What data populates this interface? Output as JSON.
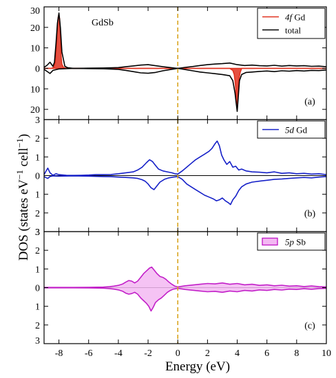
{
  "chart_data": {
    "type": "line",
    "xlabel": "Energy (eV)",
    "ylabel": "DOS (states eV",
    "ylabel_sup1": "−1",
    "ylabel_mid": " cell",
    "ylabel_sup2": "−1",
    "ylabel_end": ")",
    "xlim": [
      -9,
      10
    ],
    "x_ticks": [
      -8,
      -6,
      -4,
      -2,
      0,
      2,
      4,
      6,
      8,
      10
    ],
    "x_tick_labels": [
      "-8",
      "-6",
      "-4",
      "-2",
      "0",
      "2",
      "4",
      "6",
      "8",
      "10"
    ],
    "fermi_level": 0,
    "grid": false,
    "panels": [
      {
        "id": "a",
        "label": "(a)",
        "annotation": "GdSb",
        "ylim": [
          -25,
          30
        ],
        "y_ticks": [
          30,
          20,
          10,
          0,
          -10,
          -20
        ],
        "y_tick_labels": [
          "30",
          "20",
          "10",
          "0",
          "10",
          "20"
        ],
        "legend_position": "top-right",
        "legend": [
          {
            "italic": "4f",
            "rest": " Gd",
            "color": "#e0301e",
            "kind": "line"
          },
          {
            "italic": "",
            "rest": "total",
            "color": "#000000",
            "kind": "line"
          }
        ],
        "series": [
          {
            "name": "4f Gd",
            "color": "#e0301e",
            "fill": "#e0301e",
            "spin_up": {
              "x": [
                -9,
                -8.5,
                -8.35,
                -8.25,
                -8.15,
                -8.1,
                -8.05,
                -8.0,
                -7.95,
                -7.9,
                -7.85,
                -7.8,
                -7.7,
                -7.5,
                10
              ],
              "y": [
                0,
                0,
                0.5,
                3,
                12,
                20,
                25,
                26,
                24,
                15,
                6,
                2,
                0.5,
                0,
                0
              ]
            },
            "spin_down": {
              "x": [
                -9,
                3.5,
                3.7,
                3.8,
                3.85,
                3.9,
                3.95,
                4.0,
                4.05,
                4.1,
                4.2,
                4.3,
                10
              ],
              "y": [
                0,
                0,
                -1,
                -3,
                -6,
                -10,
                -16,
                -20,
                -14,
                -6,
                -2,
                0,
                0
              ]
            }
          },
          {
            "name": "total",
            "color": "#000000",
            "fill": "none",
            "spin_up": {
              "x": [
                -9,
                -8.8,
                -8.6,
                -8.4,
                -8.3,
                -8.2,
                -8.1,
                -8.0,
                -7.9,
                -7.8,
                -7.6,
                -7.4,
                -7,
                -6,
                -5,
                -4,
                -3.5,
                -3,
                -2.5,
                -2,
                -1.5,
                -1,
                -0.5,
                0,
                0.5,
                1,
                1.5,
                2,
                2.5,
                3,
                3.5,
                4,
                4.5,
                5,
                5.5,
                6,
                6.5,
                7,
                7.5,
                8,
                8.5,
                9,
                9.5,
                10
              ],
              "y": [
                0.5,
                1.5,
                3,
                1,
                3,
                12,
                22,
                27,
                20,
                8,
                1,
                0.3,
                0,
                0.1,
                0.2,
                0.4,
                0.8,
                1.2,
                1.6,
                1.8,
                1.3,
                0.8,
                0.4,
                0,
                0.5,
                0.9,
                1.4,
                1.8,
                2.1,
                2.3,
                2.6,
                1.8,
                1.4,
                1.6,
                1.3,
                1.2,
                1.5,
                1.1,
                1.4,
                1.2,
                1.3,
                1.0,
                1.1,
                0.8
              ]
            },
            "spin_down": {
              "x": [
                -9,
                -8.8,
                -8.6,
                -8.4,
                -8,
                -7,
                -6,
                -5,
                -4,
                -3.5,
                -3,
                -2.5,
                -2,
                -1.5,
                -1,
                -0.5,
                0,
                0.5,
                1,
                1.5,
                2,
                2.5,
                3,
                3.5,
                3.7,
                3.85,
                3.95,
                4.0,
                4.05,
                4.15,
                4.3,
                4.6,
                5,
                5.5,
                6,
                6.5,
                7,
                7.5,
                8,
                8.5,
                9,
                9.5,
                10
              ],
              "y": [
                -0.5,
                -1.5,
                -2.5,
                -1,
                -0.3,
                0,
                -0.1,
                -0.2,
                -0.5,
                -1,
                -1.6,
                -2.2,
                -2.4,
                -2,
                -1.2,
                -0.6,
                0,
                -0.6,
                -1.2,
                -1.8,
                -2.2,
                -2.6,
                -3,
                -3.6,
                -6,
                -12,
                -18,
                -21,
                -16,
                -6,
                -3,
                -2,
                -1.8,
                -1.5,
                -1.3,
                -1.6,
                -1.2,
                -1.4,
                -1.1,
                -1.3,
                -1.0,
                -1.1,
                -0.8
              ]
            }
          }
        ]
      },
      {
        "id": "b",
        "label": "(b)",
        "annotation": "",
        "ylim": [
          -3,
          3
        ],
        "y_ticks": [
          3,
          2,
          1,
          0,
          -1,
          -2,
          -3
        ],
        "y_tick_labels": [
          "3",
          "2",
          "1",
          "0",
          "1",
          "2",
          "3"
        ],
        "legend_position": "top-right",
        "legend": [
          {
            "italic": "5d",
            "rest": " Gd",
            "color": "#1520c8",
            "kind": "line"
          }
        ],
        "series": [
          {
            "name": "5d Gd",
            "color": "#1520c8",
            "fill": "none",
            "spin_up": {
              "x": [
                -9,
                -8.9,
                -8.75,
                -8.6,
                -8.4,
                -8.2,
                -8,
                -7.5,
                -7,
                -6.5,
                -6,
                -5.5,
                -5,
                -4.5,
                -4,
                -3.5,
                -3,
                -2.7,
                -2.4,
                -2.1,
                -1.9,
                -1.7,
                -1.5,
                -1.3,
                -1.0,
                -0.7,
                -0.4,
                -0.2,
                0,
                0.3,
                0.6,
                0.9,
                1.2,
                1.5,
                1.8,
                2.1,
                2.3,
                2.5,
                2.65,
                2.8,
                2.95,
                3.1,
                3.3,
                3.5,
                3.7,
                3.9,
                4.1,
                4.3,
                4.6,
                5,
                5.5,
                6,
                6.5,
                7,
                7.5,
                8,
                8.5,
                9,
                9.5,
                10
              ],
              "y": [
                0.05,
                0.2,
                0.4,
                0.15,
                0.02,
                0.1,
                0.05,
                0.02,
                0.01,
                0.02,
                0.03,
                0.05,
                0.05,
                0.06,
                0.1,
                0.15,
                0.2,
                0.3,
                0.45,
                0.7,
                0.85,
                0.75,
                0.55,
                0.35,
                0.25,
                0.2,
                0.15,
                0.1,
                0.08,
                0.25,
                0.45,
                0.65,
                0.85,
                1.0,
                1.15,
                1.3,
                1.45,
                1.7,
                1.85,
                1.6,
                1.1,
                0.85,
                0.6,
                0.75,
                0.45,
                0.5,
                0.3,
                0.35,
                0.25,
                0.2,
                0.18,
                0.15,
                0.2,
                0.12,
                0.15,
                0.1,
                0.12,
                0.08,
                0.1,
                0.05
              ]
            },
            "spin_down": {
              "x": [
                -9,
                -8.9,
                -8.75,
                -8.6,
                -8.4,
                -8,
                -7,
                -6,
                -5,
                -4.5,
                -4,
                -3.5,
                -3,
                -2.7,
                -2.4,
                -2.2,
                -2.0,
                -1.8,
                -1.6,
                -1.4,
                -1.2,
                -0.9,
                -0.6,
                -0.3,
                0,
                0.3,
                0.6,
                0.9,
                1.2,
                1.5,
                1.8,
                2.1,
                2.4,
                2.6,
                2.8,
                3.0,
                3.2,
                3.4,
                3.55,
                3.7,
                3.9,
                4.1,
                4.3,
                4.6,
                5,
                5.5,
                6,
                6.5,
                7,
                7.5,
                8,
                8.5,
                9,
                9.5,
                10
              ],
              "y": [
                -0.05,
                -0.1,
                -0.15,
                -0.05,
                -0.02,
                -0.03,
                -0.02,
                -0.03,
                -0.05,
                -0.06,
                -0.08,
                -0.1,
                -0.12,
                -0.15,
                -0.22,
                -0.3,
                -0.45,
                -0.65,
                -0.75,
                -0.55,
                -0.35,
                -0.2,
                -0.12,
                -0.08,
                -0.05,
                -0.2,
                -0.45,
                -0.6,
                -0.75,
                -0.9,
                -1.05,
                -1.15,
                -1.25,
                -1.35,
                -1.3,
                -1.2,
                -1.35,
                -1.45,
                -1.55,
                -1.3,
                -1.1,
                -0.8,
                -0.6,
                -0.45,
                -0.35,
                -0.3,
                -0.25,
                -0.2,
                -0.18,
                -0.15,
                -0.12,
                -0.1,
                -0.12,
                -0.08,
                -0.05
              ]
            }
          }
        ]
      },
      {
        "id": "c",
        "label": "(c)",
        "annotation": "",
        "ylim": [
          -3,
          3
        ],
        "y_ticks": [
          3,
          2,
          1,
          0,
          -1,
          -2,
          -3
        ],
        "y_tick_labels": [
          "3",
          "2",
          "1",
          "0",
          "1",
          "2",
          "3"
        ],
        "legend_position": "top-right",
        "legend": [
          {
            "italic": "5p",
            "rest": " Sb",
            "color": "#c21ec8",
            "kind": "box"
          }
        ],
        "series": [
          {
            "name": "5p Sb",
            "color": "#c21ec8",
            "fill": "#f3b8f2",
            "spin_up": {
              "x": [
                -9,
                -8,
                -7,
                -6,
                -5,
                -4.6,
                -4.3,
                -4.0,
                -3.7,
                -3.5,
                -3.3,
                -3.1,
                -2.9,
                -2.7,
                -2.5,
                -2.3,
                -2.1,
                -1.9,
                -1.75,
                -1.6,
                -1.4,
                -1.2,
                -1.0,
                -0.8,
                -0.6,
                -0.4,
                -0.2,
                0,
                0.5,
                1,
                1.5,
                2,
                2.5,
                3,
                3.5,
                4,
                4.5,
                5,
                5.5,
                6,
                6.5,
                7,
                7.5,
                8,
                8.5,
                9,
                9.5,
                10
              ],
              "y": [
                0.01,
                0.01,
                0.01,
                0.02,
                0.03,
                0.05,
                0.08,
                0.12,
                0.2,
                0.3,
                0.38,
                0.35,
                0.25,
                0.35,
                0.55,
                0.75,
                0.9,
                1.05,
                1.1,
                0.95,
                0.75,
                0.6,
                0.55,
                0.45,
                0.3,
                0.18,
                0.08,
                0.04,
                0.1,
                0.14,
                0.18,
                0.22,
                0.2,
                0.25,
                0.18,
                0.22,
                0.15,
                0.18,
                0.12,
                0.15,
                0.1,
                0.13,
                0.08,
                0.1,
                0.06,
                0.09,
                0.05,
                0.04
              ]
            },
            "spin_down": {
              "x": [
                -9,
                -8,
                -7,
                -6,
                -5,
                -4.6,
                -4.3,
                -4.0,
                -3.7,
                -3.5,
                -3.3,
                -3.1,
                -2.9,
                -2.7,
                -2.5,
                -2.3,
                -2.1,
                -1.95,
                -1.8,
                -1.65,
                -1.5,
                -1.3,
                -1.1,
                -0.9,
                -0.7,
                -0.5,
                -0.3,
                0,
                0.5,
                1,
                1.5,
                2,
                2.5,
                3,
                3.5,
                4,
                4.5,
                5,
                5.5,
                6,
                6.5,
                7,
                7.5,
                8,
                8.5,
                9,
                9.5,
                10
              ],
              "y": [
                -0.01,
                -0.01,
                -0.01,
                -0.02,
                -0.03,
                -0.05,
                -0.08,
                -0.12,
                -0.2,
                -0.3,
                -0.35,
                -0.32,
                -0.25,
                -0.35,
                -0.55,
                -0.7,
                -0.85,
                -1.0,
                -1.25,
                -1.05,
                -0.8,
                -0.65,
                -0.55,
                -0.4,
                -0.25,
                -0.15,
                -0.08,
                -0.04,
                -0.1,
                -0.14,
                -0.18,
                -0.22,
                -0.2,
                -0.25,
                -0.18,
                -0.22,
                -0.15,
                -0.18,
                -0.12,
                -0.15,
                -0.1,
                -0.13,
                -0.08,
                -0.1,
                -0.06,
                -0.09,
                -0.05,
                -0.04
              ]
            }
          }
        ]
      }
    ]
  }
}
